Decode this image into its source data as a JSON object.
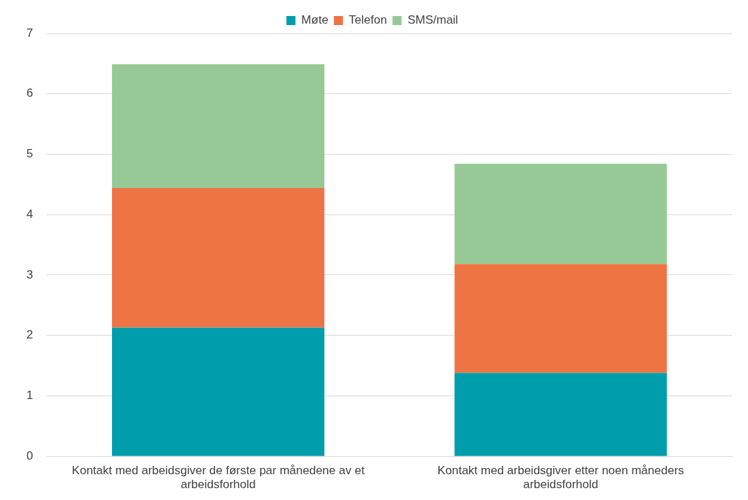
{
  "chart_data": {
    "type": "bar",
    "stacked": true,
    "categories": [
      "Kontakt med arbeidsgiver de første par månedene av et arbeidsforhold",
      "Kontakt med arbeidsgiver etter noen måneders arbeidsforhold"
    ],
    "series": [
      {
        "name": "Møte",
        "color": "#009dac",
        "values": [
          2.13,
          1.38
        ]
      },
      {
        "name": "Telefon",
        "color": "#ef7444",
        "values": [
          2.31,
          1.8
        ]
      },
      {
        "name": "SMS/mail",
        "color": "#96c995",
        "values": [
          2.05,
          1.66
        ]
      }
    ],
    "ylim": [
      0,
      7
    ],
    "yticks": [
      0,
      1,
      2,
      3,
      4,
      5,
      6,
      7
    ],
    "grid": "y",
    "legend": "top"
  }
}
